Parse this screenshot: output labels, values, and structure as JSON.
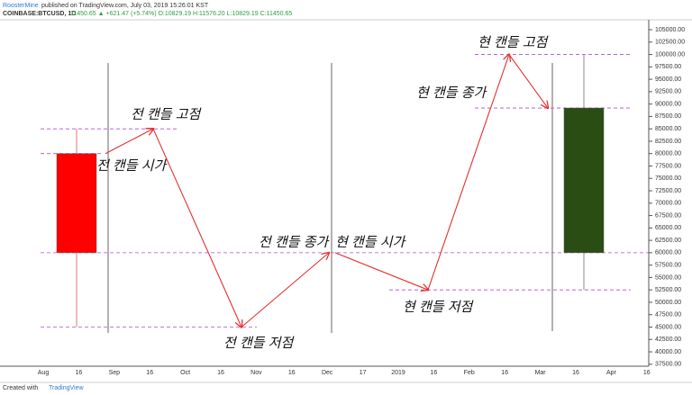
{
  "header": {
    "author": "RoosterMine",
    "published": "published on TradingView.com, July 03, 2019 15:26:01 KST",
    "symbol": "COINBASE:BTCUSD, 1D",
    "quote": "11450.65 ▲ +621.47 (+5.74%) O:10829.19 H:11576.20 L:10829.19 C:11450.65"
  },
  "footer": {
    "created": "Created with",
    "brand": "TradingView"
  },
  "chart_data": {
    "type": "candlestick",
    "candles": [
      {
        "open": 80000,
        "high": 85000,
        "low": 45000,
        "close": 60000,
        "color": "#ff0000"
      },
      {
        "open": 60000,
        "high": 100000,
        "low": 52500,
        "close": 89200,
        "color": "#2a4d14"
      }
    ],
    "annotations": [
      "전 캔들 고점",
      "전 캔들 시가",
      "전 캔들 저점",
      "전 캔들 종가",
      "현 캔들 시가",
      "현 캔들 저점",
      "현 캔들 종가",
      "현 캔들 고점"
    ],
    "x_labels": [
      "Aug",
      "16",
      "Sep",
      "16",
      "Oct",
      "16",
      "Nov",
      "16",
      "Dec",
      "17",
      "2019",
      "16",
      "Feb",
      "16",
      "Mar",
      "16",
      "Apr",
      "16"
    ],
    "ylim": [
      37100,
      107000
    ],
    "yticks": [
      {
        "value": 37500,
        "label": "37500.00"
      },
      {
        "value": 40000,
        "label": "40000.00"
      },
      {
        "value": 42500,
        "label": "42500.00"
      },
      {
        "value": 45000,
        "label": "45000.00"
      },
      {
        "value": 47500,
        "label": "47500.00"
      },
      {
        "value": 50000,
        "label": "50000.00"
      },
      {
        "value": 52500,
        "label": "52500.00"
      },
      {
        "value": 55000,
        "label": "55000.00"
      },
      {
        "value": 57500,
        "label": "57500.00"
      },
      {
        "value": 60000,
        "label": "60000.00"
      },
      {
        "value": 62500,
        "label": "62500.00"
      },
      {
        "value": 65000,
        "label": "65000.00"
      },
      {
        "value": 67500,
        "label": "67500.00"
      },
      {
        "value": 70000,
        "label": "70000.00"
      },
      {
        "value": 72500,
        "label": "72500.00"
      },
      {
        "value": 75000,
        "label": "75000.00"
      },
      {
        "value": 77500,
        "label": "77500.00"
      },
      {
        "value": 80000,
        "label": "80000.00"
      },
      {
        "value": 82500,
        "label": "82500.00"
      },
      {
        "value": 85000,
        "label": "85000.00"
      },
      {
        "value": 87500,
        "label": "87500.00"
      },
      {
        "value": 90000,
        "label": "90000.00"
      },
      {
        "value": 92500,
        "label": "92500.00"
      },
      {
        "value": 95000,
        "label": "95000.00"
      },
      {
        "value": 97500,
        "label": "97500.00"
      },
      {
        "value": 100000,
        "label": "100000.00"
      },
      {
        "value": 102500,
        "label": "102500.00"
      },
      {
        "value": 105000,
        "label": "105000.00"
      }
    ]
  }
}
